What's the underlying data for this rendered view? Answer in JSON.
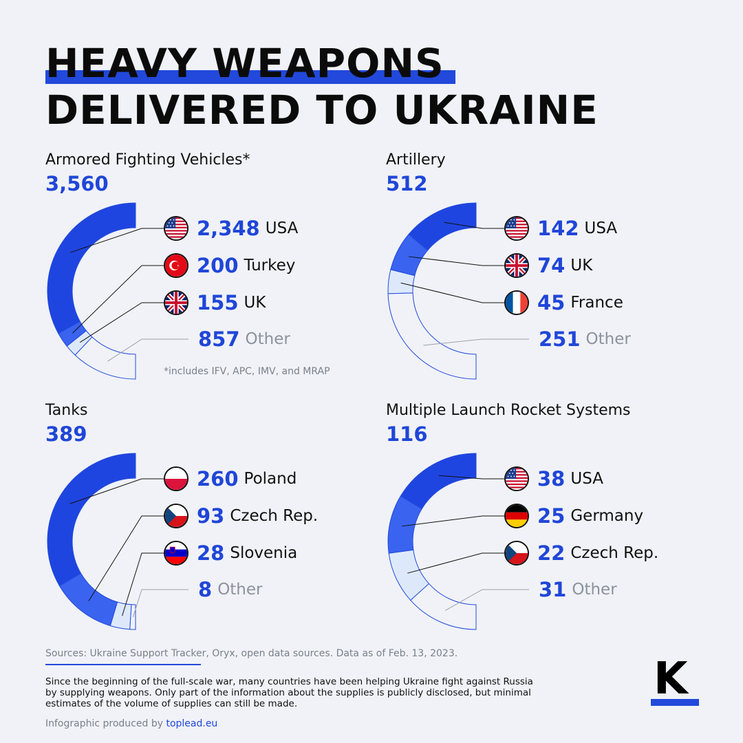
{
  "title": {
    "line1": "HEAVY WEAPONS",
    "line2": "DELIVERED TO UKRAINE"
  },
  "colors": {
    "accent": "#2249db",
    "segments": [
      "#1f45e0",
      "#3a63ef",
      "#dde9fb",
      "#f0f2f7"
    ],
    "outline": "#2249db"
  },
  "chart_data": [
    {
      "type": "pie",
      "title": "Armored Fighting Vehicles*",
      "total": "3,560",
      "footnote": "*includes IFV, APC, IMV, and MRAP",
      "categories": [
        "USA",
        "Turkey",
        "UK",
        "Other"
      ],
      "values": [
        2348,
        200,
        155,
        857
      ],
      "labels": [
        "2,348",
        "200",
        "155",
        "857"
      ],
      "flags": [
        "us",
        "tr",
        "gb",
        "none"
      ]
    },
    {
      "type": "pie",
      "title": "Artillery",
      "total": "512",
      "categories": [
        "USA",
        "UK",
        "France",
        "Other"
      ],
      "values": [
        142,
        74,
        45,
        251
      ],
      "labels": [
        "142",
        "74",
        "45",
        "251"
      ],
      "flags": [
        "us",
        "gb",
        "fr",
        "none"
      ]
    },
    {
      "type": "pie",
      "title": "Tanks",
      "total": "389",
      "categories": [
        "Poland",
        "Czech Rep.",
        "Slovenia",
        "Other"
      ],
      "values": [
        260,
        93,
        28,
        8
      ],
      "labels": [
        "260",
        "93",
        "28",
        "8"
      ],
      "flags": [
        "pl",
        "cz",
        "si",
        "none"
      ]
    },
    {
      "type": "pie",
      "title": "Multiple Launch Rocket Systems",
      "total": "116",
      "categories": [
        "USA",
        "Germany",
        "Czech Rep.",
        "Other"
      ],
      "values": [
        38,
        25,
        22,
        31
      ],
      "labels": [
        "38",
        "25",
        "22",
        "31"
      ],
      "flags": [
        "us",
        "de",
        "cz",
        "none"
      ]
    }
  ],
  "sources": "Sources: Ukraine Support Tracker, Oryx, open data sources. Data as of Feb. 13, 2023.",
  "description": "Since the beginning of the full-scale war, many countries have been helping Ukraine fight against Russia by supplying weapons. Only part of the information about the supplies is publicly disclosed, but minimal estimates of the volume of supplies can still be made.",
  "credit": {
    "prefix": "Infographic produced by ",
    "link": "toplead.eu"
  },
  "logo": {
    "letter": "K"
  }
}
